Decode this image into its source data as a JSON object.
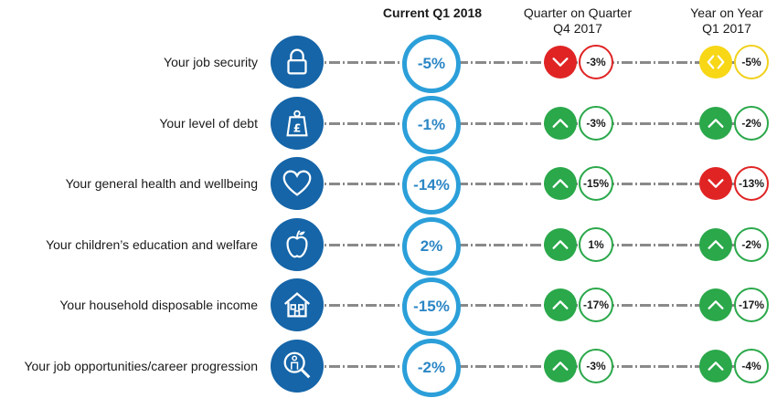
{
  "chart_data": {
    "type": "table",
    "columns": [
      {
        "title_lines": [
          "Current Q1 2018"
        ],
        "bold": true
      },
      {
        "title_lines": [
          "Quarter on Quarter",
          "Q4 2017"
        ],
        "bold": false
      },
      {
        "title_lines": [
          "Year on Year",
          "Q1 2017"
        ],
        "bold": false
      }
    ],
    "rows": [
      {
        "label": "Your job security",
        "icon": "padlock-icon",
        "current": "-5%",
        "qoq": {
          "direction": "down",
          "value": "-3%"
        },
        "yoy": {
          "direction": "same",
          "value": "-5%"
        }
      },
      {
        "label": "Your level of debt",
        "icon": "pound-weight-icon",
        "current": "-1%",
        "qoq": {
          "direction": "up",
          "value": "-3%"
        },
        "yoy": {
          "direction": "up",
          "value": "-2%"
        }
      },
      {
        "label": "Your general health and wellbeing",
        "icon": "heart-icon",
        "current": "-14%",
        "qoq": {
          "direction": "up",
          "value": "-15%"
        },
        "yoy": {
          "direction": "down",
          "value": "-13%"
        }
      },
      {
        "label": "Your children’s education and welfare",
        "icon": "apple-icon",
        "current": "2%",
        "qoq": {
          "direction": "up",
          "value": "1%"
        },
        "yoy": {
          "direction": "up",
          "value": "-2%"
        }
      },
      {
        "label": "Your household disposable income",
        "icon": "house-icon",
        "current": "-15%",
        "qoq": {
          "direction": "up",
          "value": "-17%"
        },
        "yoy": {
          "direction": "up",
          "value": "-17%"
        }
      },
      {
        "label": "Your job opportunities/career progression",
        "icon": "magnifier-person-icon",
        "current": "-2%",
        "qoq": {
          "direction": "up",
          "value": "-3%"
        },
        "yoy": {
          "direction": "up",
          "value": "-4%"
        }
      }
    ],
    "colors": {
      "icon_bg": "#1565a8",
      "current_ring": "#2b9fd9",
      "up": "#2aa84a",
      "down": "#e02424",
      "same": "#f7d716"
    }
  }
}
